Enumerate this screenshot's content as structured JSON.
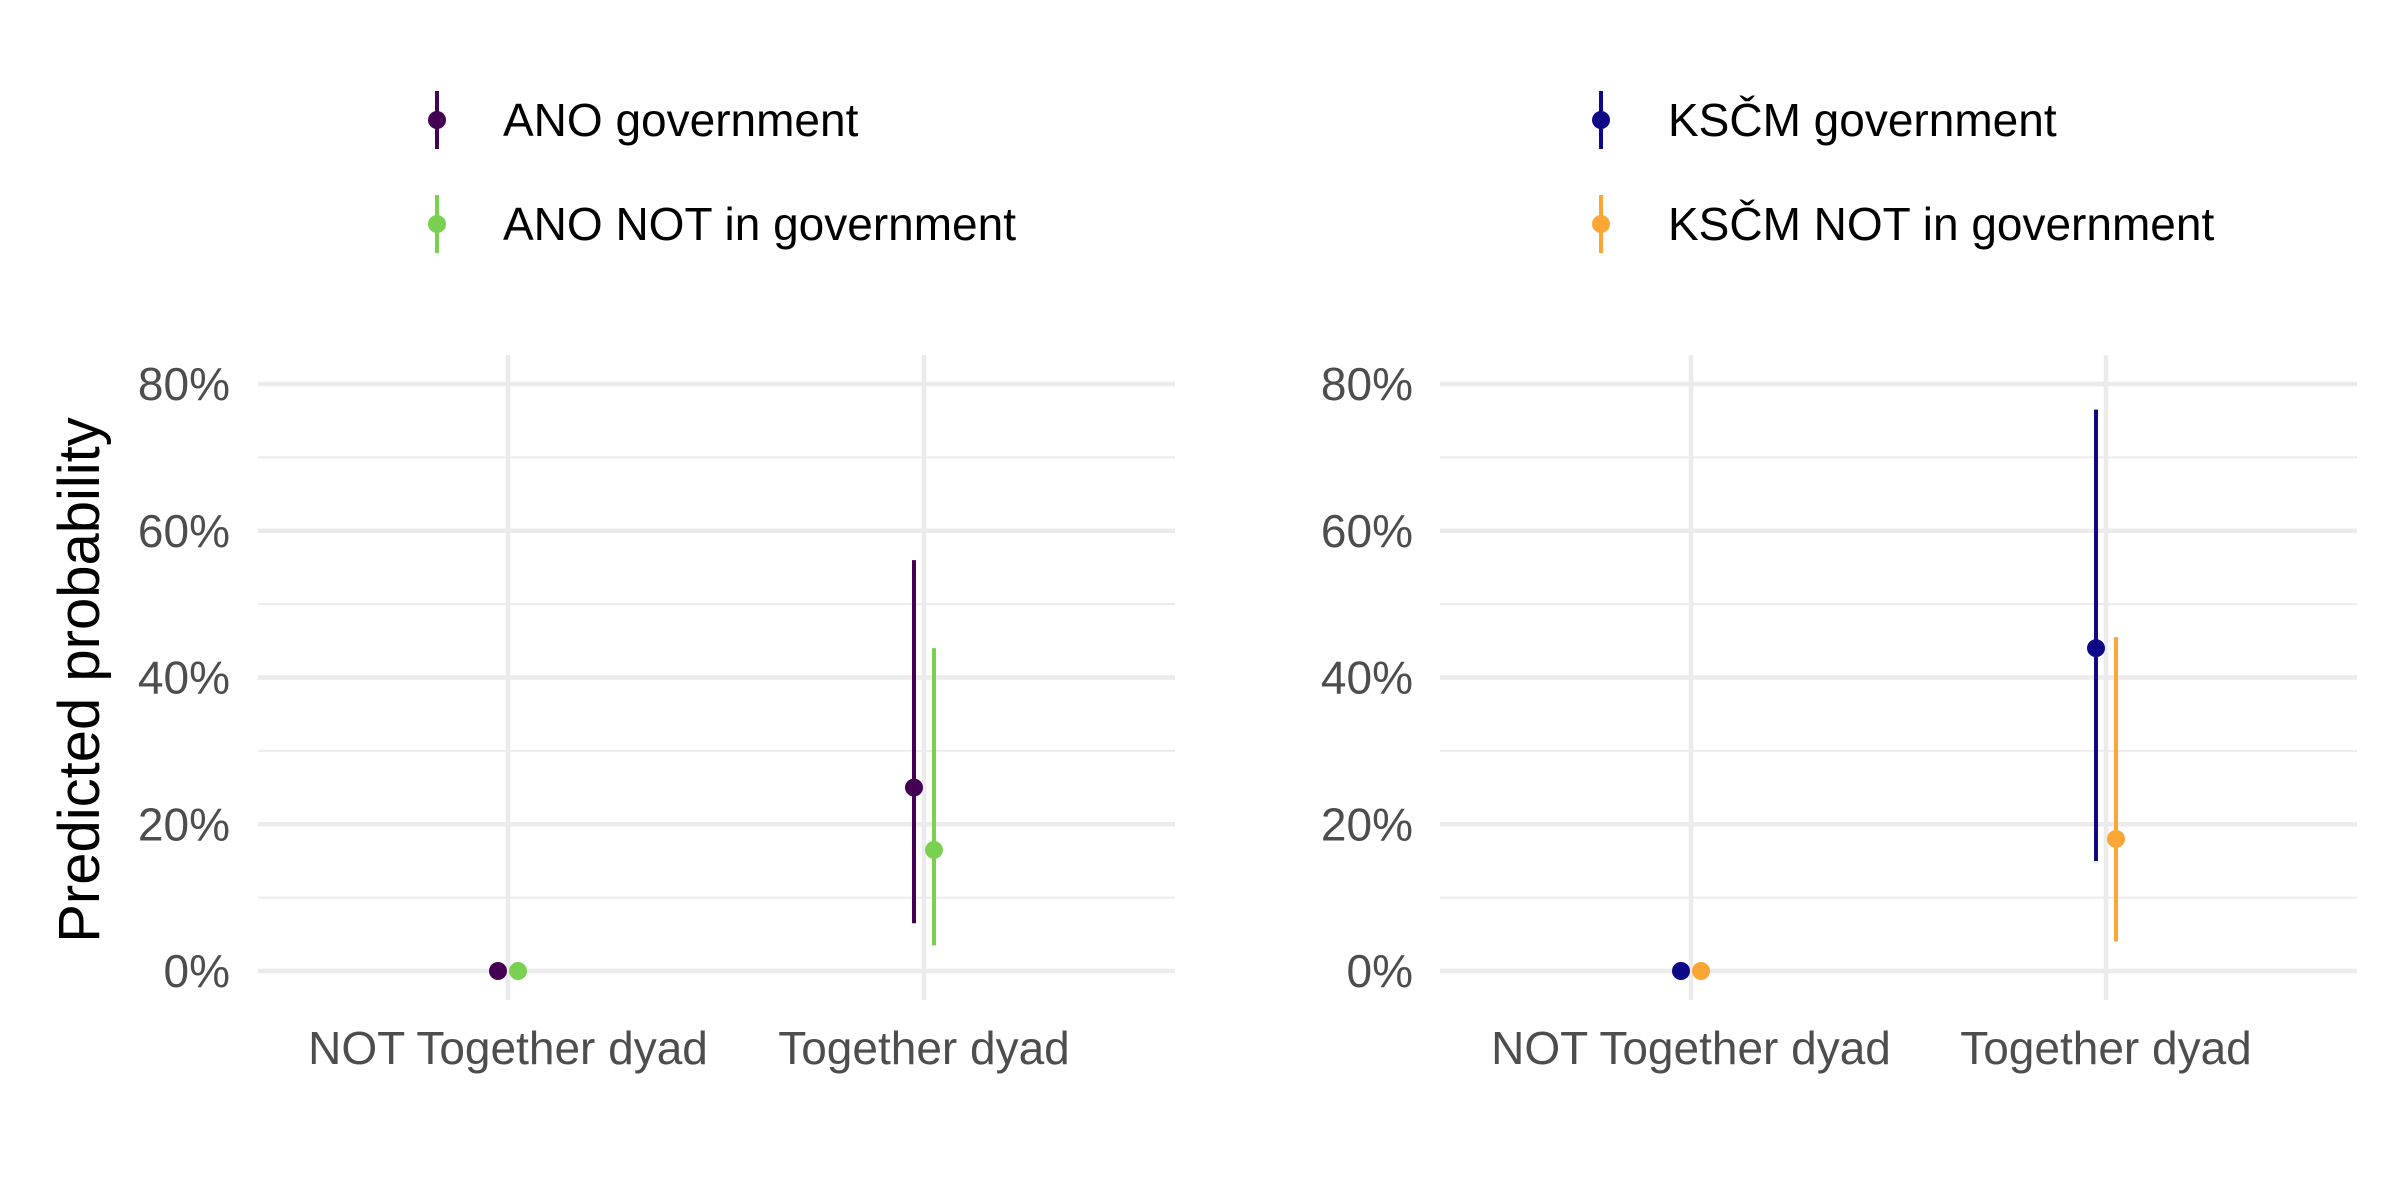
{
  "ylabel": "Predicted probability",
  "chart_data": [
    {
      "type": "scatter",
      "title": "",
      "xlabel": "",
      "ylabel": "Predicted probability",
      "categories": [
        "NOT Together dyad",
        "Together dyad"
      ],
      "yticks": [
        "0%",
        "20%",
        "40%",
        "60%",
        "80%"
      ],
      "ylim": [
        0,
        0.8
      ],
      "grid": true,
      "legend_position": "top",
      "series": [
        {
          "name": "ANO government",
          "color": "#440154",
          "points": [
            {
              "category": "NOT Together dyad",
              "value": 0.0,
              "lower": 0.0,
              "upper": 0.0
            },
            {
              "category": "Together dyad",
              "value": 0.25,
              "lower": 0.065,
              "upper": 0.56
            }
          ]
        },
        {
          "name": "ANO NOT in government",
          "color": "#7AD151",
          "points": [
            {
              "category": "NOT Together dyad",
              "value": 0.0,
              "lower": 0.0,
              "upper": 0.0
            },
            {
              "category": "Together dyad",
              "value": 0.165,
              "lower": 0.035,
              "upper": 0.44
            }
          ]
        }
      ]
    },
    {
      "type": "scatter",
      "title": "",
      "xlabel": "",
      "ylabel": "",
      "categories": [
        "NOT Together dyad",
        "Together dyad"
      ],
      "yticks": [
        "0%",
        "20%",
        "40%",
        "60%",
        "80%"
      ],
      "ylim": [
        0,
        0.8
      ],
      "grid": true,
      "legend_position": "top",
      "series": [
        {
          "name": "KSČM government",
          "color": "#0D0887",
          "points": [
            {
              "category": "NOT Together dyad",
              "value": 0.0,
              "lower": 0.0,
              "upper": 0.0
            },
            {
              "category": "Together dyad",
              "value": 0.44,
              "lower": 0.15,
              "upper": 0.765
            }
          ]
        },
        {
          "name": "KSČM NOT in government",
          "color": "#FCA636",
          "points": [
            {
              "category": "NOT Together dyad",
              "value": 0.0,
              "lower": 0.0,
              "upper": 0.0
            },
            {
              "category": "Together dyad",
              "value": 0.18,
              "lower": 0.04,
              "upper": 0.455
            }
          ]
        }
      ]
    }
  ]
}
